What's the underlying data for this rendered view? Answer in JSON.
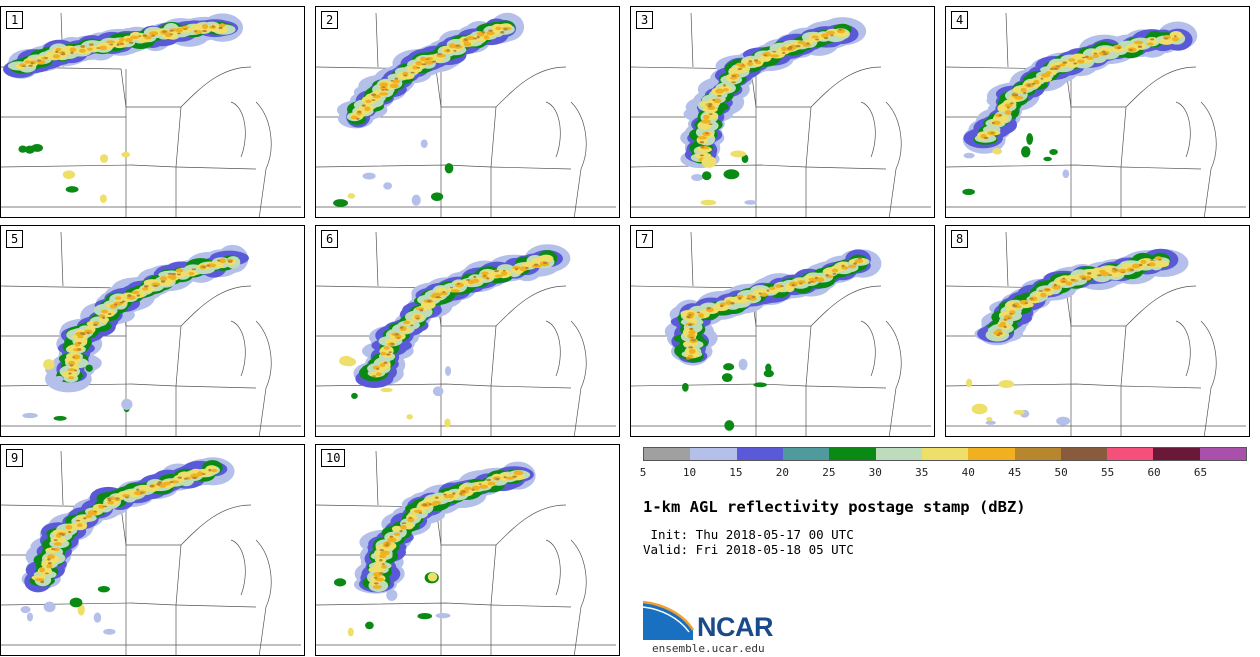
{
  "panels": [
    {
      "label": "1"
    },
    {
      "label": "2"
    },
    {
      "label": "3"
    },
    {
      "label": "4"
    },
    {
      "label": "5"
    },
    {
      "label": "6"
    },
    {
      "label": "7"
    },
    {
      "label": "8"
    },
    {
      "label": "9"
    },
    {
      "label": "10"
    }
  ],
  "colorbar": {
    "colors": [
      "#a0a0a0",
      "#b4c0ea",
      "#5a5ad8",
      "#4e9a9c",
      "#0a8a14",
      "#bcdcbc",
      "#eede6a",
      "#f0b020",
      "#b8862e",
      "#8a5a3c",
      "#f4507a",
      "#6a1838",
      "#a850aa"
    ],
    "ticks": [
      "5",
      "10",
      "15",
      "20",
      "25",
      "30",
      "35",
      "40",
      "45",
      "50",
      "55",
      "60",
      "65"
    ]
  },
  "title": "1-km AGL reflectivity postage stamp (dBZ)",
  "init_text": " Init: Thu 2018-05-17 00 UTC",
  "valid_text": "Valid: Fri 2018-05-18 05 UTC",
  "logo": {
    "name": "NCAR",
    "url": "ensemble.ucar.edu"
  }
}
